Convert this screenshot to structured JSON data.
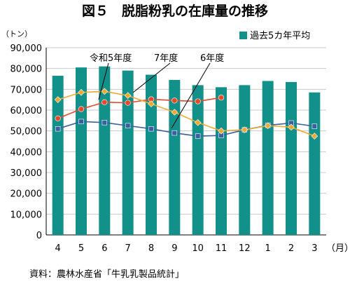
{
  "chart_data": {
    "type": "bar",
    "title": "図５　脱脂粉乳の在庫量の推移",
    "ylabel": "（トン）",
    "xlabel": "（月）",
    "source": "資料：農林水産省「牛乳乳製品統計」",
    "categories": [
      "4",
      "5",
      "6",
      "7",
      "8",
      "9",
      "10",
      "11",
      "12",
      "1",
      "2",
      "3"
    ],
    "ylim": [
      0,
      90000
    ],
    "yticks": [
      0,
      10000,
      20000,
      30000,
      40000,
      50000,
      60000,
      70000,
      80000,
      90000
    ],
    "ytick_labels": [
      "0",
      "10,000",
      "20,000",
      "30,000",
      "40,000",
      "50,000",
      "60,000",
      "70,000",
      "80,000",
      "90,000"
    ],
    "grid": true,
    "legend_position": "top-right",
    "colors": {
      "bar": "#12918a",
      "reiwa5": "#e44a2a",
      "y6": "#3a5f9e",
      "y7": "#f0a830"
    },
    "series": [
      {
        "name": "過去5カ年平均",
        "type": "bar",
        "values": [
          76500,
          80500,
          81000,
          79000,
          77000,
          74500,
          72000,
          71000,
          72000,
          74000,
          73500,
          68500
        ]
      },
      {
        "name": "令和5年度",
        "type": "line",
        "marker": "circle",
        "values": [
          56000,
          60500,
          63800,
          63500,
          65200,
          64600,
          64200,
          66000,
          null,
          null,
          null,
          null
        ]
      },
      {
        "name": "6年度",
        "type": "line",
        "marker": "square",
        "values": [
          51000,
          54500,
          54000,
          52500,
          51000,
          49000,
          47500,
          47800,
          50500,
          52700,
          53800,
          52200
        ]
      },
      {
        "name": "7年度",
        "type": "line",
        "marker": "diamond",
        "values": [
          65000,
          68500,
          69000,
          67000,
          63000,
          59000,
          54000,
          50000,
          50500,
          52500,
          51800,
          47500
        ]
      }
    ],
    "annotations": {
      "reiwa5": "令和5年度",
      "y7": "7年度",
      "y6": "6年度"
    }
  }
}
